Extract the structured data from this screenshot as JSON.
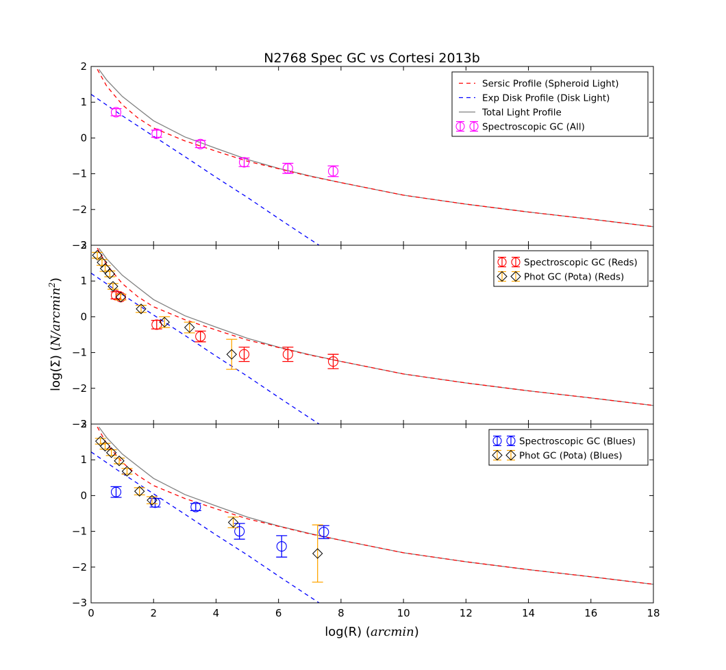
{
  "title": "N2768 Spec GC vs Cortesi 2013b",
  "xlabel_prefix": "log(R) (",
  "xlabel_math": "arcmin",
  "xlabel_suffix": ")",
  "ylabel_prefix": "log(Σ) (",
  "ylabel_math": "N/arcmin",
  "ylabel_sup": "2",
  "ylabel_suffix": ")",
  "colors": {
    "sersic": "#ff0000",
    "disk": "#0000ff",
    "total": "#808080",
    "all": "#ff00ff",
    "reds": "#ff0000",
    "blues": "#0000ff",
    "phot_err": "#ffa500",
    "phot_marker": "#000000"
  },
  "chart_data": [
    {
      "type": "line",
      "panel": "top",
      "xlim": [
        0,
        18
      ],
      "ylim": [
        -3,
        2
      ],
      "xticks": [
        0,
        2,
        4,
        6,
        8,
        10,
        12,
        14,
        16,
        18
      ],
      "yticks": [
        -3,
        -2,
        -1,
        0,
        1,
        2
      ],
      "legend_position": "top-right",
      "legend": [
        "Sersic Profile (Spheroid Light)",
        "Exp Disk Profile (Disk Light)",
        "Total Light Profile",
        "Spectroscopic GC (All)"
      ],
      "profiles": {
        "sersic": [
          [
            0.2,
            1.92
          ],
          [
            0.5,
            1.45
          ],
          [
            1.0,
            0.93
          ],
          [
            1.5,
            0.56
          ],
          [
            2.0,
            0.28
          ],
          [
            3.0,
            -0.08
          ],
          [
            4.0,
            -0.37
          ],
          [
            5.0,
            -0.65
          ],
          [
            6.0,
            -0.86
          ],
          [
            7.0,
            -1.07
          ],
          [
            8.0,
            -1.25
          ],
          [
            10.0,
            -1.6
          ],
          [
            12.0,
            -1.85
          ],
          [
            14.0,
            -2.07
          ],
          [
            16.0,
            -2.27
          ],
          [
            18.0,
            -2.48
          ]
        ],
        "disk": [
          [
            0.0,
            1.22
          ],
          [
            1.0,
            0.62
          ],
          [
            2.0,
            0.05
          ],
          [
            3.0,
            -0.52
          ],
          [
            4.0,
            -1.1
          ],
          [
            5.0,
            -1.66
          ],
          [
            6.0,
            -2.25
          ],
          [
            7.0,
            -2.83
          ],
          [
            7.3,
            -3.0
          ]
        ],
        "total": [
          [
            0.25,
            1.92
          ],
          [
            0.5,
            1.62
          ],
          [
            1.0,
            1.16
          ],
          [
            1.5,
            0.82
          ],
          [
            2.0,
            0.48
          ],
          [
            3.0,
            0.03
          ],
          [
            4.0,
            -0.29
          ],
          [
            5.0,
            -0.6
          ],
          [
            6.0,
            -0.85
          ],
          [
            7.0,
            -1.06
          ],
          [
            8.0,
            -1.25
          ],
          [
            10.0,
            -1.6
          ],
          [
            12.0,
            -1.85
          ],
          [
            14.0,
            -2.07
          ],
          [
            16.0,
            -2.27
          ],
          [
            18.0,
            -2.48
          ]
        ]
      },
      "series": [
        {
          "name": "Spectroscopic GC (All)",
          "marker": "circle",
          "points": [
            {
              "x": 0.8,
              "y": 0.72,
              "err": 0.1
            },
            {
              "x": 2.1,
              "y": 0.12,
              "err": 0.1
            },
            {
              "x": 3.5,
              "y": -0.17,
              "err": 0.1
            },
            {
              "x": 4.9,
              "y": -0.68,
              "err": 0.12
            },
            {
              "x": 6.3,
              "y": -0.85,
              "err": 0.14
            },
            {
              "x": 7.75,
              "y": -0.93,
              "err": 0.15
            }
          ]
        }
      ]
    },
    {
      "type": "line",
      "panel": "middle",
      "xlim": [
        0,
        18
      ],
      "ylim": [
        -3,
        2
      ],
      "xticks": [
        0,
        2,
        4,
        6,
        8,
        10,
        12,
        14,
        16,
        18
      ],
      "yticks": [
        -3,
        -2,
        -1,
        0,
        1,
        2
      ],
      "legend_position": "top-right",
      "legend": [
        "Spectroscopic GC (Reds)",
        "Phot GC (Pota) (Reds)"
      ],
      "series": [
        {
          "name": "Spectroscopic GC (Reds)",
          "marker": "circle",
          "points": [
            {
              "x": 0.8,
              "y": 0.6,
              "err": 0.1
            },
            {
              "x": 0.95,
              "y": 0.55,
              "err": 0.08
            },
            {
              "x": 2.1,
              "y": -0.22,
              "err": 0.12
            },
            {
              "x": 3.5,
              "y": -0.55,
              "err": 0.15
            },
            {
              "x": 4.9,
              "y": -1.05,
              "err": 0.2
            },
            {
              "x": 6.3,
              "y": -1.05,
              "err": 0.2
            },
            {
              "x": 7.75,
              "y": -1.25,
              "err": 0.2
            }
          ]
        },
        {
          "name": "Phot GC (Pota) (Reds)",
          "marker": "diamond",
          "points": [
            {
              "x": 0.2,
              "y": 1.72,
              "err": 0.08
            },
            {
              "x": 0.35,
              "y": 1.52,
              "err": 0.08
            },
            {
              "x": 0.45,
              "y": 1.35,
              "err": 0.08
            },
            {
              "x": 0.6,
              "y": 1.2,
              "err": 0.08
            },
            {
              "x": 0.7,
              "y": 0.85,
              "err": 0.08
            },
            {
              "x": 0.95,
              "y": 0.55,
              "err": 0.08
            },
            {
              "x": 1.6,
              "y": 0.22,
              "err": 0.1
            },
            {
              "x": 2.35,
              "y": -0.15,
              "err": 0.15
            },
            {
              "x": 3.15,
              "y": -0.3,
              "err": 0.15
            },
            {
              "x": 4.5,
              "y": -1.05,
              "err": 0.42
            }
          ]
        }
      ]
    },
    {
      "type": "line",
      "panel": "bottom",
      "xlim": [
        0,
        18
      ],
      "ylim": [
        -3,
        2
      ],
      "xticks": [
        0,
        2,
        4,
        6,
        8,
        10,
        12,
        14,
        16,
        18
      ],
      "yticks": [
        -3,
        -2,
        -1,
        0,
        1,
        2
      ],
      "legend_position": "top-right",
      "legend": [
        "Spectroscopic GC (Blues)",
        "Phot GC (Pota) (Blues)"
      ],
      "series": [
        {
          "name": "Spectroscopic GC (Blues)",
          "marker": "circle",
          "points": [
            {
              "x": 0.8,
              "y": 0.1,
              "err": 0.15
            },
            {
              "x": 2.05,
              "y": -0.2,
              "err": 0.12
            },
            {
              "x": 3.35,
              "y": -0.32,
              "err": 0.1
            },
            {
              "x": 4.75,
              "y": -1.0,
              "err": 0.22
            },
            {
              "x": 6.1,
              "y": -1.42,
              "err": 0.3
            },
            {
              "x": 7.45,
              "y": -1.02,
              "err": 0.18
            }
          ]
        },
        {
          "name": "Phot GC (Pota) (Blues)",
          "marker": "diamond",
          "points": [
            {
              "x": 0.3,
              "y": 1.52,
              "err": 0.08
            },
            {
              "x": 0.45,
              "y": 1.38,
              "err": 0.08
            },
            {
              "x": 0.65,
              "y": 1.2,
              "err": 0.08
            },
            {
              "x": 0.9,
              "y": 0.97,
              "err": 0.08
            },
            {
              "x": 1.15,
              "y": 0.68,
              "err": 0.08
            },
            {
              "x": 1.55,
              "y": 0.12,
              "err": 0.1
            },
            {
              "x": 1.95,
              "y": -0.13,
              "err": 0.1
            },
            {
              "x": 4.55,
              "y": -0.75,
              "err": 0.15
            },
            {
              "x": 7.25,
              "y": -1.62,
              "err": 0.8
            }
          ]
        }
      ]
    }
  ]
}
